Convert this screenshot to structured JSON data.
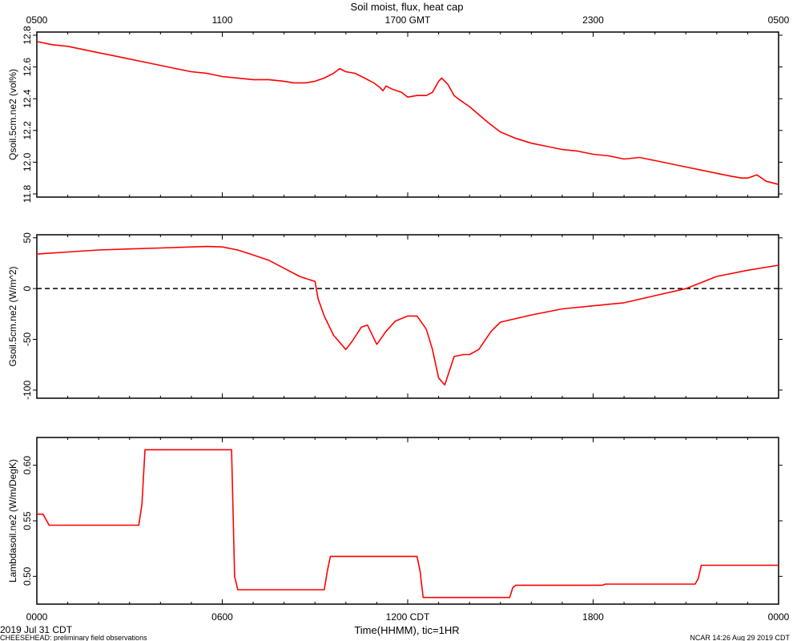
{
  "chart_data": {
    "type": "line",
    "title": "Soil moist, flux, heat cap",
    "top_axis": {
      "ticks": [
        0,
        6,
        12,
        18,
        24
      ],
      "tick_labels": [
        "0500",
        "1100",
        "1700 GMT",
        "2300",
        "0500"
      ]
    },
    "bottom_axis": {
      "ticks": [
        0,
        6,
        12,
        18,
        24
      ],
      "tick_labels": [
        "0000",
        "0600",
        "1200 CDT",
        "1800",
        "0000"
      ],
      "xlabel": "Time(HHMM), tic=1HR",
      "xlim": [
        0,
        24
      ]
    },
    "footer": {
      "left_date": "2019 Jul 31 CDT",
      "left_note": "CHEESEHEAD: preliminary field observations",
      "right_note": "NCAR 14:26 Aug 29 2019 CDT"
    },
    "panels": [
      {
        "ylabel": "Qsoil.5cm.ne2 (vol%)",
        "ylim": [
          11.78,
          12.82
        ],
        "yticks": [
          11.8,
          12.0,
          12.2,
          12.4,
          12.6,
          12.8
        ],
        "ytick_labels": [
          "11.8",
          "12.0",
          "12.2",
          "12.4",
          "12.6",
          "12.8"
        ],
        "series": [
          {
            "color": "#ff0000",
            "x": [
              0,
              0.5,
              1,
              1.5,
              2,
              2.5,
              3,
              3.5,
              4,
              4.5,
              5,
              5.5,
              6,
              6.5,
              7,
              7.5,
              8,
              8.3,
              8.7,
              9.0,
              9.3,
              9.6,
              9.8,
              10.0,
              10.3,
              10.6,
              10.9,
              11.1,
              11.2,
              11.3,
              11.5,
              11.8,
              12.0,
              12.3,
              12.6,
              12.8,
              13.0,
              13.1,
              13.3,
              13.5,
              13.7,
              14.0,
              14.3,
              14.6,
              15.0,
              15.5,
              16.0,
              16.5,
              17.0,
              17.5,
              18.0,
              18.5,
              19.0,
              19.5,
              20.0,
              20.5,
              21.0,
              21.5,
              22.0,
              22.5,
              22.8,
              23.0,
              23.3,
              23.6,
              24.0
            ],
            "y": [
              12.76,
              12.74,
              12.73,
              12.71,
              12.69,
              12.67,
              12.65,
              12.63,
              12.61,
              12.59,
              12.57,
              12.56,
              12.54,
              12.53,
              12.52,
              12.52,
              12.51,
              12.5,
              12.5,
              12.51,
              12.53,
              12.56,
              12.59,
              12.57,
              12.56,
              12.53,
              12.5,
              12.47,
              12.45,
              12.48,
              12.46,
              12.44,
              12.41,
              12.42,
              12.42,
              12.44,
              12.51,
              12.53,
              12.49,
              12.42,
              12.39,
              12.35,
              12.3,
              12.25,
              12.19,
              12.15,
              12.12,
              12.1,
              12.08,
              12.07,
              12.05,
              12.04,
              12.02,
              12.03,
              12.01,
              11.99,
              11.97,
              11.95,
              11.93,
              11.91,
              11.9,
              11.9,
              11.92,
              11.88,
              11.86
            ]
          }
        ]
      },
      {
        "ylabel": "Gsoil.5cm.ne2 (W/m^2)",
        "ylim": [
          -108,
          53
        ],
        "yticks": [
          -100,
          -50,
          0,
          50
        ],
        "ytick_labels": [
          "-100",
          "-50",
          "0",
          "50"
        ],
        "reference_line": {
          "y": 0,
          "style": "dashed"
        },
        "series": [
          {
            "color": "#ff0000",
            "x": [
              0,
              1,
              2,
              3,
              4,
              5,
              5.5,
              6,
              6.5,
              7,
              7.5,
              8,
              8.5,
              9.0,
              9.1,
              9.3,
              9.6,
              10.0,
              10.2,
              10.5,
              10.7,
              11.0,
              11.3,
              11.6,
              12.0,
              12.3,
              12.6,
              12.8,
              13.0,
              13.2,
              13.5,
              13.8,
              14.0,
              14.3,
              14.7,
              15.0,
              16.0,
              17.0,
              18.0,
              19.0,
              20.0,
              21.0,
              22.0,
              23.0,
              24.0
            ],
            "y": [
              34,
              36,
              38,
              39,
              40,
              41,
              41.5,
              41,
              38,
              33,
              28,
              20,
              12,
              7,
              -10,
              -27,
              -46,
              -60,
              -52,
              -38,
              -36,
              -55,
              -42,
              -32,
              -27,
              -27,
              -40,
              -60,
              -88,
              -95,
              -67,
              -65,
              -65,
              -60,
              -42,
              -33,
              -26,
              -20,
              -17,
              -14,
              -7,
              0,
              12,
              18,
              23
            ]
          }
        ]
      },
      {
        "ylabel": "Lambdasoil.ne2 (W/m/DegK)",
        "ylim": [
          0.475,
          0.625
        ],
        "yticks": [
          0.5,
          0.55,
          0.6
        ],
        "ytick_labels": [
          "0.50",
          "0.55",
          "0.60"
        ],
        "series": [
          {
            "color": "#ff0000",
            "x": [
              0,
              0.2,
              0.4,
              3.3,
              3.4,
              3.5,
              6.3,
              6.4,
              6.5,
              9.3,
              9.4,
              9.5,
              12.3,
              12.4,
              12.5,
              15.3,
              15.4,
              15.5,
              18.3,
              18.4,
              21.3,
              21.4,
              21.5,
              24.0
            ],
            "y": [
              0.556,
              0.556,
              0.546,
              0.546,
              0.565,
              0.614,
              0.614,
              0.5,
              0.488,
              0.488,
              0.505,
              0.518,
              0.518,
              0.505,
              0.481,
              0.481,
              0.49,
              0.492,
              0.492,
              0.493,
              0.493,
              0.498,
              0.51,
              0.51
            ]
          }
        ]
      }
    ]
  }
}
